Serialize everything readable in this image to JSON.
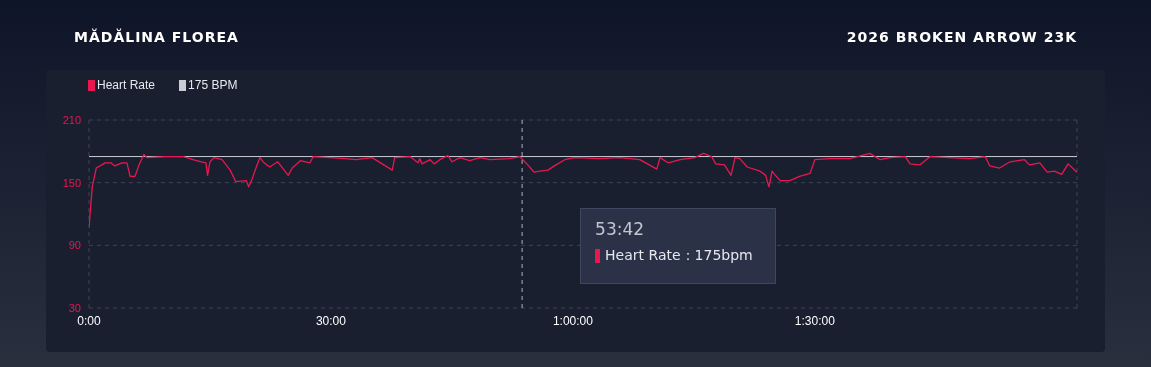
{
  "chart_data": {
    "type": "line",
    "title": "MĂDĂLINA FLOREA",
    "subtitle": "2026 BROKEN ARROW 23K",
    "series": [
      {
        "name": "Heart Rate",
        "color": "#e8174f",
        "x": [
          0,
          0.4,
          0.9,
          2.0,
          2.7,
          3.2,
          4.1,
          4.7,
          5.1,
          5.7,
          6.2,
          6.8,
          7.2,
          9.4,
          11.7,
          13.3,
          14.5,
          14.7,
          15.0,
          15.5,
          16.5,
          17.5,
          18.2,
          19.5,
          19.8,
          20.2,
          20.7,
          21.2,
          21.7,
          22.4,
          23.4,
          24.2,
          24.7,
          25.2,
          26.2,
          27.4,
          27.8,
          29.9,
          31.7,
          33.1,
          35.1,
          37.6,
          37.9,
          39.8,
          40.8,
          41.0,
          41.3,
          42.3,
          42.8,
          43.5,
          44.5,
          45.0,
          46.0,
          47.2,
          48.5,
          49.7,
          52.2,
          53.4,
          54.4,
          55.2,
          55.9,
          56.9,
          57.9,
          59.0,
          60.2,
          63.3,
          65.8,
          68.3,
          70.4,
          70.8,
          71.8,
          73.3,
          75.1,
          76.2,
          77.2,
          77.7,
          78.8,
          79.6,
          80.1,
          80.7,
          81.6,
          83.2,
          83.9,
          84.3,
          84.7,
          85.0,
          85.7,
          86.9,
          88.1,
          89.4,
          90.0,
          91.9,
          94.3,
          95.3,
          96.8,
          98.1,
          99.3,
          101.2,
          101.8,
          103.0,
          104.3,
          106.7,
          109.2,
          111.1,
          111.7,
          112.9,
          114.2,
          116.0,
          116.6,
          117.9,
          118.8,
          119.7,
          120.6,
          121.4,
          122.5
        ],
        "values": [
          107,
          146,
          164,
          169,
          169,
          166,
          169,
          169,
          156,
          156,
          167,
          177,
          174,
          175,
          175,
          171,
          169,
          157,
          170,
          174,
          172,
          162,
          151,
          152,
          146,
          153,
          164,
          174,
          169,
          165,
          170,
          162,
          157,
          164,
          171,
          169,
          175,
          174,
          173,
          172,
          174,
          162,
          174,
          175,
          169,
          173,
          168,
          172,
          168,
          172,
          176,
          170,
          174,
          171,
          174,
          172,
          173,
          175,
          167,
          160,
          161,
          162,
          167,
          172,
          174,
          173,
          174,
          172,
          163,
          174,
          169,
          172,
          174,
          178,
          175,
          168,
          167,
          157,
          174,
          173,
          165,
          161,
          157,
          146,
          161,
          158,
          152,
          152,
          156,
          159,
          172,
          173,
          173,
          175,
          178,
          172,
          174,
          175,
          168,
          167,
          175,
          174,
          173,
          175,
          166,
          164,
          170,
          172,
          167,
          169,
          160,
          161,
          158,
          168,
          160
        ]
      }
    ],
    "xlim": [
      0,
      122.5
    ],
    "xticks": [
      {
        "value": 0,
        "label": "0:00"
      },
      {
        "value": 30,
        "label": "30:00"
      },
      {
        "value": 60,
        "label": "1:00:00"
      },
      {
        "value": 90,
        "label": "1:30:00"
      }
    ],
    "ylim": [
      30,
      210
    ],
    "yticks": [
      30,
      90,
      150,
      210
    ],
    "grid": "y",
    "legend": "top left",
    "marker": "none",
    "line_style": "solid",
    "ref_lines": [
      {
        "axis": "y",
        "value": 175,
        "label": "175 BPM",
        "color": "#c9ccd4",
        "line_style": "solid"
      },
      {
        "axis": "x",
        "value": 53.7,
        "color": "#aab0bd",
        "line_style": "dashed"
      }
    ],
    "annotations": [
      "53:42",
      "Heart Rate：175bpm"
    ]
  }
}
